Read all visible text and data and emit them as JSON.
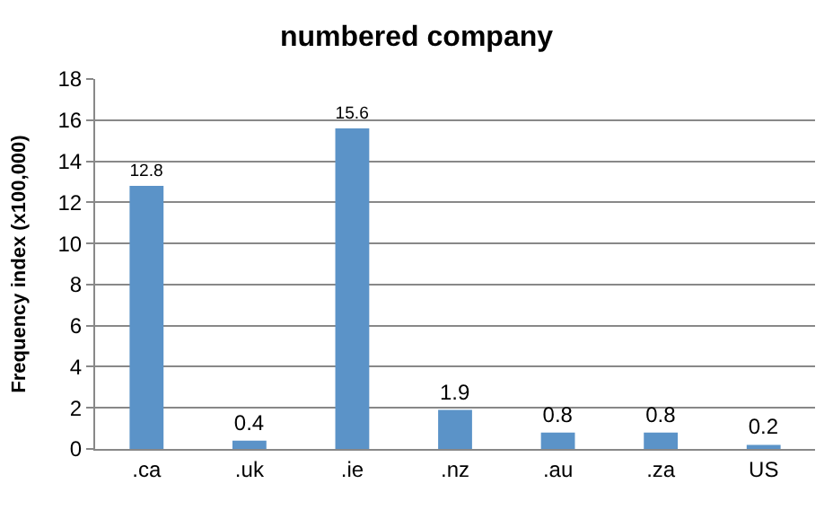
{
  "chart_data": {
    "type": "bar",
    "title": "numbered company",
    "ylabel": "Frequency index (x100,000)",
    "categories": [
      ".ca",
      ".uk",
      ".ie",
      ".nz",
      ".au",
      ".za",
      "US"
    ],
    "values": [
      12.8,
      0.4,
      15.6,
      1.9,
      0.8,
      0.8,
      0.2
    ],
    "color": "#5b93c8",
    "ylim": [
      0,
      18
    ],
    "yticks": [
      0,
      2,
      4,
      6,
      8,
      10,
      12,
      14,
      16,
      18
    ],
    "grid": "y",
    "data_labels": true,
    "legend": false
  }
}
